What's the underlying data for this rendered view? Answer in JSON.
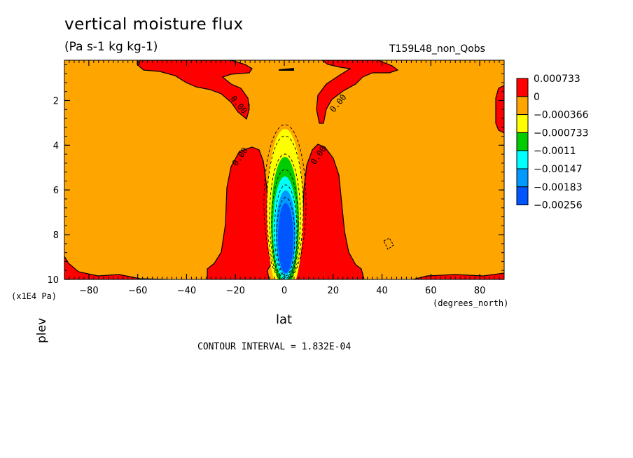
{
  "title": "vertical moisture flux",
  "units": "(Pa s-1 kg kg-1)",
  "run_label": "T159L48_non_Qobs",
  "contour_interval": "CONTOUR INTERVAL = 1.832E-04",
  "chart_data": {
    "type": "heatmap",
    "title": "vertical moisture flux",
    "subtitle": "(Pa s-1 kg kg-1)",
    "xlabel": "lat",
    "xunit": "(degrees_north)",
    "ylabel": "plev",
    "yunit": "(x1E4 Pa)",
    "xlim": [
      -90,
      90
    ],
    "ylim": [
      10,
      0.2
    ],
    "x_ticks": [
      "-80",
      "-60",
      "-40",
      "-20",
      "0",
      "20",
      "40",
      "60",
      "80"
    ],
    "y_ticks": [
      "2",
      "4",
      "6",
      "8",
      "10"
    ],
    "colorbar": {
      "labels": [
        "0.000733",
        "0",
        "-0.000366",
        "-0.000733",
        "-0.0011",
        "-0.00147",
        "-0.00183",
        "-0.00256"
      ],
      "colors": [
        "#ff0000",
        "#ffa500",
        "#ffff00",
        "#00cc00",
        "#00ffff",
        "#0099ff",
        "#0055ff"
      ]
    },
    "contour_labels": [
      "0.00",
      "0.00",
      "0.00",
      "0.00"
    ]
  }
}
